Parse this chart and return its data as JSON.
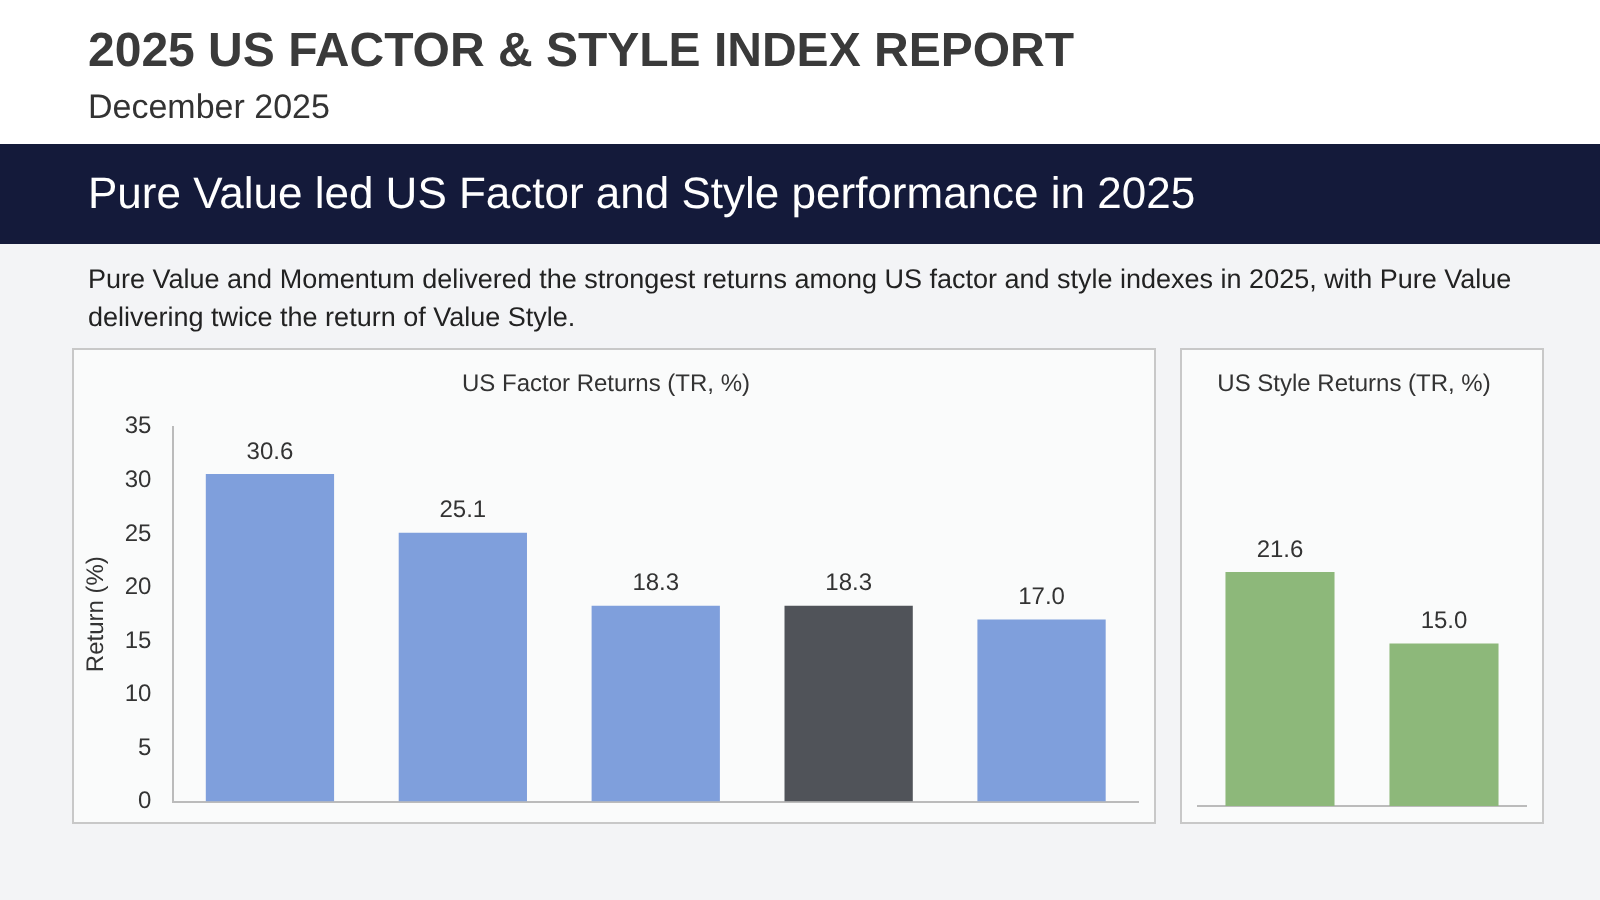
{
  "chart_data": [
    {
      "type": "bar",
      "title": "US Factor Returns (TR, %)",
      "ylabel": "Return (%)",
      "annotations": [
        "2025 US FACTOR & STYLE INDEX REPORT",
        "December 2025",
        "Pure Value led US Factor and Style performance in 2025",
        "Pure Value and Momentum delivered the strongest returns among US factor and style indexes in 2025, with Pure Value delivering twice the return of Value Style."
      ],
      "categories": [
        null,
        null,
        null,
        null,
        null
      ],
      "values": [
        30.6,
        25.1,
        18.3,
        18.3,
        17.0
      ],
      "colors": [
        "#7f9fdc",
        "#7f9fdc",
        "#7f9fdc",
        "#505359",
        "#7f9fdc"
      ],
      "value_labels": [
        "30.6",
        "25.1",
        "18.3",
        "18.3",
        "17.0"
      ],
      "ylim": [
        0,
        35
      ],
      "yticks": [
        0,
        5,
        10,
        15,
        20,
        25,
        30,
        35
      ],
      "tick_labels": "y"
    },
    {
      "type": "bar",
      "title": "US Style Returns (TR, %)",
      "categories": [
        null,
        null
      ],
      "values": [
        21.6,
        15.0
      ],
      "colors": [
        "#8db87a",
        "#8db87a"
      ],
      "value_labels": [
        "21.6",
        "15.0"
      ],
      "ylim": [
        0,
        35
      ],
      "tick_labels": false
    }
  ]
}
